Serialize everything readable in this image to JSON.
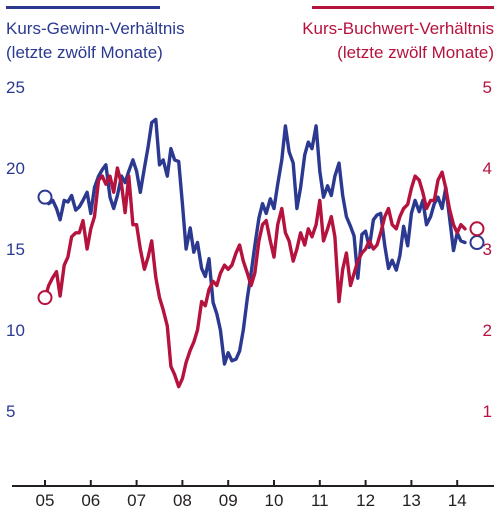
{
  "chart_data": {
    "type": "line",
    "left_axis": {
      "title_line1": "Kurs-Gewinn-Verhältnis",
      "title_line2": "(letzte zwölf Monate)",
      "ticks": [
        5,
        10,
        15,
        20,
        25
      ],
      "range": [
        0,
        25
      ],
      "color": "#2b3990"
    },
    "right_axis": {
      "title_line1": "Kurs-Buchwert-Verhältnis",
      "title_line2": "(letzte zwölf Monate)",
      "ticks": [
        1,
        2,
        3,
        4,
        5
      ],
      "range": [
        0,
        5
      ],
      "color": "#b5123e"
    },
    "x_axis": {
      "tick_labels": [
        "05",
        "06",
        "07",
        "08",
        "09",
        "10",
        "11",
        "12",
        "13",
        "14"
      ],
      "tick_positions": [
        2005,
        2006,
        2007,
        2008,
        2009,
        2010,
        2011,
        2012,
        2013,
        2014
      ],
      "range": [
        2004.5,
        2015.0
      ]
    },
    "series": [
      {
        "axis": "left",
        "color": "#2b3990",
        "start_marker": true,
        "end_marker": true,
        "points": [
          [
            2005.0,
            18.2
          ],
          [
            2005.08,
            17.8
          ],
          [
            2005.17,
            18.0
          ],
          [
            2005.25,
            17.5
          ],
          [
            2005.33,
            16.8
          ],
          [
            2005.42,
            18.0
          ],
          [
            2005.5,
            17.9
          ],
          [
            2005.58,
            18.3
          ],
          [
            2005.67,
            17.4
          ],
          [
            2005.75,
            17.6
          ],
          [
            2005.83,
            18.0
          ],
          [
            2005.92,
            18.5
          ],
          [
            2006.0,
            17.2
          ],
          [
            2006.08,
            18.8
          ],
          [
            2006.17,
            19.5
          ],
          [
            2006.25,
            19.9
          ],
          [
            2006.33,
            20.2
          ],
          [
            2006.42,
            18.2
          ],
          [
            2006.5,
            17.5
          ],
          [
            2006.58,
            18.3
          ],
          [
            2006.67,
            19.5
          ],
          [
            2006.75,
            19.1
          ],
          [
            2006.83,
            19.8
          ],
          [
            2006.92,
            20.5
          ],
          [
            2007.0,
            19.8
          ],
          [
            2007.08,
            18.5
          ],
          [
            2007.17,
            20.0
          ],
          [
            2007.25,
            21.3
          ],
          [
            2007.33,
            22.8
          ],
          [
            2007.42,
            23.0
          ],
          [
            2007.5,
            20.2
          ],
          [
            2007.58,
            20.5
          ],
          [
            2007.67,
            19.5
          ],
          [
            2007.75,
            21.2
          ],
          [
            2007.83,
            20.5
          ],
          [
            2007.92,
            20.4
          ],
          [
            2008.0,
            17.8
          ],
          [
            2008.08,
            15.0
          ],
          [
            2008.17,
            16.3
          ],
          [
            2008.25,
            14.8
          ],
          [
            2008.33,
            15.4
          ],
          [
            2008.42,
            13.8
          ],
          [
            2008.5,
            13.3
          ],
          [
            2008.58,
            14.4
          ],
          [
            2008.67,
            11.7
          ],
          [
            2008.75,
            11.0
          ],
          [
            2008.83,
            10.0
          ],
          [
            2008.92,
            7.9
          ],
          [
            2009.0,
            8.6
          ],
          [
            2009.08,
            8.1
          ],
          [
            2009.17,
            8.2
          ],
          [
            2009.25,
            8.7
          ],
          [
            2009.33,
            10.0
          ],
          [
            2009.42,
            12.0
          ],
          [
            2009.5,
            13.5
          ],
          [
            2009.58,
            15.2
          ],
          [
            2009.67,
            16.9
          ],
          [
            2009.75,
            17.8
          ],
          [
            2009.83,
            17.2
          ],
          [
            2009.92,
            18.1
          ],
          [
            2010.0,
            17.5
          ],
          [
            2010.08,
            19.0
          ],
          [
            2010.17,
            20.5
          ],
          [
            2010.25,
            22.6
          ],
          [
            2010.33,
            21.0
          ],
          [
            2010.42,
            20.3
          ],
          [
            2010.5,
            17.5
          ],
          [
            2010.58,
            18.8
          ],
          [
            2010.67,
            20.8
          ],
          [
            2010.75,
            21.6
          ],
          [
            2010.83,
            21.2
          ],
          [
            2010.92,
            22.6
          ],
          [
            2011.0,
            19.8
          ],
          [
            2011.08,
            18.2
          ],
          [
            2011.17,
            18.9
          ],
          [
            2011.25,
            18.3
          ],
          [
            2011.33,
            19.5
          ],
          [
            2011.42,
            20.3
          ],
          [
            2011.5,
            18.3
          ],
          [
            2011.58,
            17.0
          ],
          [
            2011.67,
            16.4
          ],
          [
            2011.75,
            15.8
          ],
          [
            2011.83,
            13.2
          ],
          [
            2011.92,
            15.9
          ],
          [
            2012.0,
            16.1
          ],
          [
            2012.08,
            15.1
          ],
          [
            2012.17,
            16.8
          ],
          [
            2012.25,
            17.1
          ],
          [
            2012.33,
            17.2
          ],
          [
            2012.42,
            15.2
          ],
          [
            2012.5,
            13.8
          ],
          [
            2012.58,
            14.3
          ],
          [
            2012.67,
            13.7
          ],
          [
            2012.75,
            14.6
          ],
          [
            2012.83,
            16.4
          ],
          [
            2012.92,
            15.2
          ],
          [
            2013.0,
            17.2
          ],
          [
            2013.08,
            18.0
          ],
          [
            2013.17,
            17.3
          ],
          [
            2013.25,
            18.0
          ],
          [
            2013.33,
            16.5
          ],
          [
            2013.42,
            17.0
          ],
          [
            2013.5,
            17.8
          ],
          [
            2013.58,
            18.2
          ],
          [
            2013.67,
            17.5
          ],
          [
            2013.75,
            18.8
          ],
          [
            2013.83,
            17.0
          ],
          [
            2013.92,
            14.9
          ],
          [
            2014.0,
            16.0
          ],
          [
            2014.08,
            15.5
          ],
          [
            2014.17,
            15.4
          ]
        ]
      },
      {
        "axis": "right",
        "color": "#b5123e",
        "start_marker": true,
        "end_marker": true,
        "points": [
          [
            2005.0,
            2.4
          ],
          [
            2005.08,
            2.55
          ],
          [
            2005.17,
            2.65
          ],
          [
            2005.25,
            2.72
          ],
          [
            2005.33,
            2.42
          ],
          [
            2005.42,
            2.8
          ],
          [
            2005.5,
            2.9
          ],
          [
            2005.58,
            3.15
          ],
          [
            2005.67,
            3.2
          ],
          [
            2005.75,
            3.2
          ],
          [
            2005.83,
            3.35
          ],
          [
            2005.92,
            3.0
          ],
          [
            2006.0,
            3.25
          ],
          [
            2006.08,
            3.4
          ],
          [
            2006.17,
            3.85
          ],
          [
            2006.25,
            3.9
          ],
          [
            2006.33,
            3.8
          ],
          [
            2006.42,
            3.9
          ],
          [
            2006.5,
            3.7
          ],
          [
            2006.58,
            4.0
          ],
          [
            2006.67,
            3.8
          ],
          [
            2006.75,
            3.45
          ],
          [
            2006.83,
            3.9
          ],
          [
            2006.92,
            3.3
          ],
          [
            2007.0,
            3.3
          ],
          [
            2007.08,
            3.0
          ],
          [
            2007.17,
            2.75
          ],
          [
            2007.25,
            2.9
          ],
          [
            2007.33,
            3.1
          ],
          [
            2007.42,
            2.65
          ],
          [
            2007.5,
            2.4
          ],
          [
            2007.58,
            2.25
          ],
          [
            2007.67,
            2.05
          ],
          [
            2007.75,
            1.55
          ],
          [
            2007.83,
            1.45
          ],
          [
            2007.92,
            1.3
          ],
          [
            2008.0,
            1.4
          ],
          [
            2008.08,
            1.6
          ],
          [
            2008.17,
            1.75
          ],
          [
            2008.25,
            1.85
          ],
          [
            2008.33,
            2.0
          ],
          [
            2008.42,
            2.35
          ],
          [
            2008.5,
            2.3
          ],
          [
            2008.58,
            2.5
          ],
          [
            2008.67,
            2.6
          ],
          [
            2008.75,
            2.55
          ],
          [
            2008.83,
            2.7
          ],
          [
            2008.92,
            2.8
          ],
          [
            2009.0,
            2.75
          ],
          [
            2009.08,
            2.8
          ],
          [
            2009.17,
            2.95
          ],
          [
            2009.25,
            3.05
          ],
          [
            2009.33,
            2.85
          ],
          [
            2009.42,
            2.7
          ],
          [
            2009.5,
            2.55
          ],
          [
            2009.58,
            2.7
          ],
          [
            2009.67,
            3.1
          ],
          [
            2009.75,
            3.3
          ],
          [
            2009.83,
            3.35
          ],
          [
            2009.92,
            3.1
          ],
          [
            2010.0,
            2.9
          ],
          [
            2010.08,
            3.3
          ],
          [
            2010.17,
            3.5
          ],
          [
            2010.25,
            3.2
          ],
          [
            2010.33,
            3.1
          ],
          [
            2010.42,
            2.85
          ],
          [
            2010.5,
            3.0
          ],
          [
            2010.58,
            3.2
          ],
          [
            2010.67,
            3.05
          ],
          [
            2010.75,
            3.25
          ],
          [
            2010.83,
            3.15
          ],
          [
            2010.92,
            3.3
          ],
          [
            2011.0,
            3.6
          ],
          [
            2011.08,
            3.1
          ],
          [
            2011.17,
            3.25
          ],
          [
            2011.25,
            3.4
          ],
          [
            2011.33,
            3.15
          ],
          [
            2011.42,
            2.35
          ],
          [
            2011.5,
            2.75
          ],
          [
            2011.58,
            2.95
          ],
          [
            2011.67,
            2.55
          ],
          [
            2011.75,
            2.7
          ],
          [
            2011.83,
            2.85
          ],
          [
            2011.92,
            2.95
          ],
          [
            2012.0,
            3.0
          ],
          [
            2012.08,
            3.1
          ],
          [
            2012.17,
            3.0
          ],
          [
            2012.25,
            3.05
          ],
          [
            2012.33,
            3.2
          ],
          [
            2012.42,
            3.4
          ],
          [
            2012.5,
            3.5
          ],
          [
            2012.58,
            3.3
          ],
          [
            2012.67,
            3.25
          ],
          [
            2012.75,
            3.4
          ],
          [
            2012.83,
            3.5
          ],
          [
            2012.92,
            3.55
          ],
          [
            2013.0,
            3.75
          ],
          [
            2013.08,
            3.9
          ],
          [
            2013.17,
            3.85
          ],
          [
            2013.25,
            3.7
          ],
          [
            2013.33,
            3.5
          ],
          [
            2013.42,
            3.6
          ],
          [
            2013.5,
            3.6
          ],
          [
            2013.58,
            3.85
          ],
          [
            2013.67,
            3.95
          ],
          [
            2013.75,
            3.75
          ],
          [
            2013.83,
            3.5
          ],
          [
            2013.92,
            3.3
          ],
          [
            2014.0,
            3.2
          ],
          [
            2014.08,
            3.3
          ],
          [
            2014.17,
            3.25
          ]
        ]
      }
    ]
  }
}
